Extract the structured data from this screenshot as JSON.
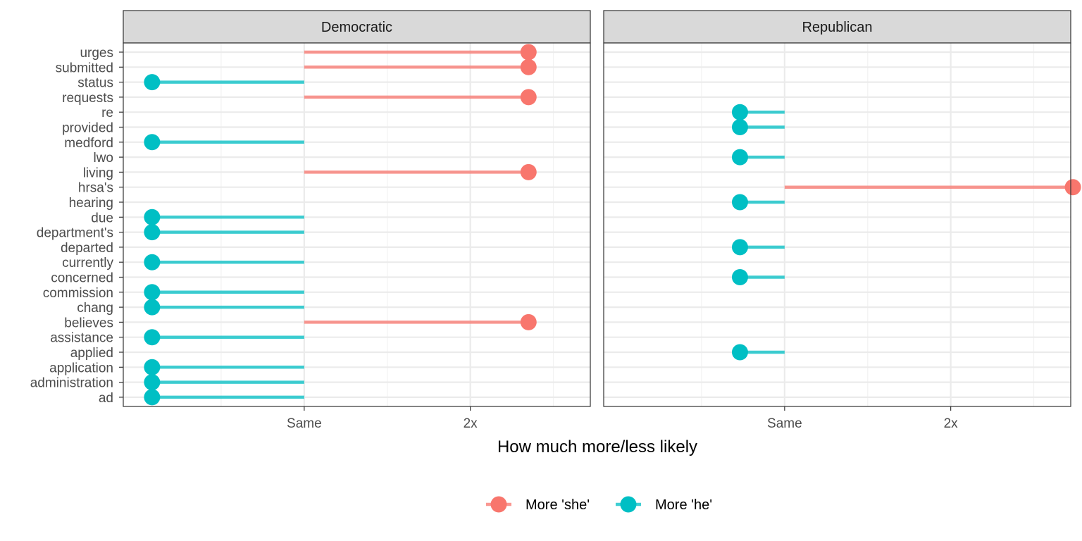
{
  "chart_data": {
    "type": "lollipop",
    "xlabel": "How much more/less likely",
    "x_ticks": [
      {
        "value": 1,
        "label": "Same"
      },
      {
        "value": 2,
        "label": "2x"
      }
    ],
    "x_scale": "log2",
    "xlim": [
      0.47,
      3.3
    ],
    "x_minor_gridlines": [
      0.7071,
      1.4142,
      2.8284
    ],
    "words": [
      "urges",
      "submitted",
      "status",
      "requests",
      "re",
      "provided",
      "medford",
      "lwo",
      "living",
      "hrsa's",
      "hearing",
      "due",
      "department's",
      "departed",
      "currently",
      "concerned",
      "commission",
      "chang",
      "believes",
      "assistance",
      "applied",
      "application",
      "administration",
      "ad"
    ],
    "legend": {
      "position": "bottom",
      "entries": [
        {
          "key": "she",
          "label": "More 'she'",
          "color": "#F8766D"
        },
        {
          "key": "he",
          "label": "More 'he'",
          "color": "#00BFC4"
        }
      ]
    },
    "grid": true,
    "panels": [
      {
        "name": "Democratic",
        "points": [
          {
            "word": "urges",
            "x": 2.55,
            "direction": "she"
          },
          {
            "word": "submitted",
            "x": 2.55,
            "direction": "she"
          },
          {
            "word": "status",
            "x": 0.53,
            "direction": "he"
          },
          {
            "word": "requests",
            "x": 2.55,
            "direction": "she"
          },
          {
            "word": "medford",
            "x": 0.53,
            "direction": "he"
          },
          {
            "word": "living",
            "x": 2.55,
            "direction": "she"
          },
          {
            "word": "due",
            "x": 0.53,
            "direction": "he"
          },
          {
            "word": "department's",
            "x": 0.53,
            "direction": "he"
          },
          {
            "word": "currently",
            "x": 0.53,
            "direction": "he"
          },
          {
            "word": "commission",
            "x": 0.53,
            "direction": "he"
          },
          {
            "word": "chang",
            "x": 0.53,
            "direction": "he"
          },
          {
            "word": "believes",
            "x": 2.55,
            "direction": "she"
          },
          {
            "word": "assistance",
            "x": 0.53,
            "direction": "he"
          },
          {
            "word": "application",
            "x": 0.53,
            "direction": "he"
          },
          {
            "word": "administration",
            "x": 0.53,
            "direction": "he"
          },
          {
            "word": "ad",
            "x": 0.53,
            "direction": "he"
          }
        ]
      },
      {
        "name": "Republican",
        "points": [
          {
            "word": "re",
            "x": 0.83,
            "direction": "he"
          },
          {
            "word": "provided",
            "x": 0.83,
            "direction": "he"
          },
          {
            "word": "lwo",
            "x": 0.83,
            "direction": "he"
          },
          {
            "word": "hrsa's",
            "x": 3.33,
            "direction": "she"
          },
          {
            "word": "hearing",
            "x": 0.83,
            "direction": "he"
          },
          {
            "word": "departed",
            "x": 0.83,
            "direction": "he"
          },
          {
            "word": "concerned",
            "x": 0.83,
            "direction": "he"
          },
          {
            "word": "applied",
            "x": 0.83,
            "direction": "he"
          }
        ]
      }
    ]
  }
}
